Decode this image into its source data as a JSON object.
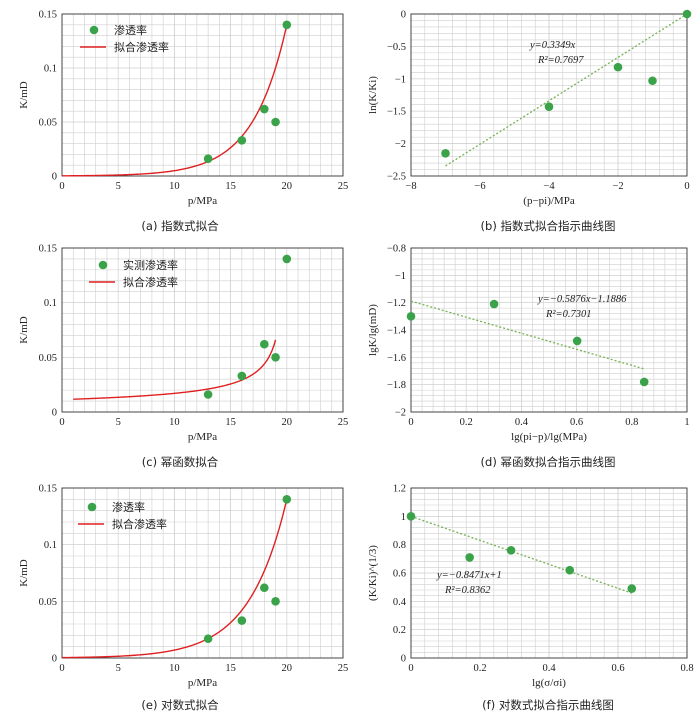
{
  "colors": {
    "point": "#3aa34a",
    "fit": "#e02020",
    "trend": "#77b255",
    "grid": "#cfcfcf",
    "axis": "#333333"
  },
  "chart_data": [
    {
      "id": "a",
      "type": "scatter",
      "caption": "(a)  指数式拟合",
      "xlabel": "p/MPa",
      "ylabel": "K/mD",
      "xlim": [
        0,
        25
      ],
      "ylim": [
        0,
        0.15
      ],
      "xticks": [
        "0",
        "5",
        "10",
        "15",
        "20",
        "25"
      ],
      "yticks": [
        "0",
        "0.05",
        "0.1",
        "0.15"
      ],
      "xtick_values": [
        0,
        5,
        10,
        15,
        20,
        25
      ],
      "ytick_values": [
        0,
        0.05,
        0.1,
        0.15
      ],
      "series": [
        {
          "name": "渗透率",
          "kind": "points",
          "x": [
            13,
            16,
            18,
            19,
            20
          ],
          "y": [
            0.016,
            0.033,
            0.062,
            0.05,
            0.14
          ]
        },
        {
          "name": "拟合渗透率",
          "kind": "curve",
          "fit": "exp",
          "x_start": 0,
          "x_end": 20,
          "k0": 0.14,
          "p0": 20,
          "b": 0.3349
        }
      ],
      "legend_position": "top-left"
    },
    {
      "id": "b",
      "type": "scatter",
      "caption": "(b)  指数式拟合指示曲线图",
      "xlabel": "(p−pi)/MPa",
      "ylabel": "ln(K/Ki)",
      "xlim": [
        -8,
        0
      ],
      "ylim": [
        -2.5,
        0
      ],
      "xticks": [
        "−8",
        "−6",
        "−4",
        "−2",
        "0"
      ],
      "yticks": [
        "−2.5",
        "−2",
        "−1.5",
        "−1",
        "−0.5",
        "0"
      ],
      "xtick_values": [
        -8,
        -6,
        -4,
        -2,
        0
      ],
      "ytick_values": [
        -2.5,
        -2,
        -1.5,
        -1,
        -0.5,
        0
      ],
      "series": [
        {
          "name": "data",
          "kind": "points",
          "x": [
            -7,
            -4,
            -2,
            -1,
            0
          ],
          "y": [
            -2.15,
            -1.43,
            -0.82,
            -1.03,
            0
          ]
        },
        {
          "name": "trend",
          "kind": "trend",
          "slope": 0.3349,
          "intercept": 0,
          "x_start": -7,
          "x_end": 0
        }
      ],
      "annotation": {
        "equation": "y=0.3349x",
        "r2": "R²=0.7697"
      }
    },
    {
      "id": "c",
      "type": "scatter",
      "caption": "(c)  幂函数拟合",
      "xlabel": "p/MPa",
      "ylabel": "K/mD",
      "xlim": [
        0,
        25
      ],
      "ylim": [
        0,
        0.15
      ],
      "xticks": [
        "0",
        "5",
        "10",
        "15",
        "20",
        "25"
      ],
      "yticks": [
        "0",
        "0.05",
        "0.1",
        "0.15"
      ],
      "xtick_values": [
        0,
        5,
        10,
        15,
        20,
        25
      ],
      "ytick_values": [
        0,
        0.05,
        0.1,
        0.15
      ],
      "series": [
        {
          "name": "实测渗透率",
          "kind": "points",
          "x": [
            13,
            16,
            18,
            19,
            20
          ],
          "y": [
            0.016,
            0.033,
            0.062,
            0.05,
            0.14
          ]
        },
        {
          "name": "拟合渗透率",
          "kind": "curve",
          "fit": "power",
          "x_start": 1,
          "x_end": 19,
          "k0": 0.14,
          "p0": 20,
          "b": -0.5876
        }
      ],
      "legend_position": "top-left"
    },
    {
      "id": "d",
      "type": "scatter",
      "caption": "(d)  幂函数拟合指示曲线图",
      "xlabel": "lg(pi−p)/lg(MPa)",
      "ylabel": "lgK/lg(mD)",
      "xlim": [
        0,
        1
      ],
      "ylim": [
        -2,
        -0.8
      ],
      "xticks": [
        "0",
        "0.2",
        "0.4",
        "0.6",
        "0.8",
        "1"
      ],
      "yticks": [
        "−2",
        "−1.8",
        "−1.6",
        "−1.4",
        "−1.2",
        "−1",
        "−0.8"
      ],
      "xtick_values": [
        0,
        0.2,
        0.4,
        0.6,
        0.8,
        1
      ],
      "ytick_values": [
        -2,
        -1.8,
        -1.6,
        -1.4,
        -1.2,
        -1,
        -0.8
      ],
      "series": [
        {
          "name": "data",
          "kind": "points",
          "x": [
            0,
            0.301,
            0.602,
            0.845
          ],
          "y": [
            -1.3,
            -1.21,
            -1.48,
            -1.78
          ]
        },
        {
          "name": "trend",
          "kind": "trend",
          "slope": -0.5876,
          "intercept": -1.1886,
          "x_start": 0,
          "x_end": 0.845
        }
      ],
      "annotation": {
        "equation": "y=−0.5876x−1.1886",
        "r2": "R²=0.7301"
      }
    },
    {
      "id": "e",
      "type": "scatter",
      "caption": "(e)  对数式拟合",
      "xlabel": "p/MPa",
      "ylabel": "K/mD",
      "xlim": [
        0,
        25
      ],
      "ylim": [
        0,
        0.15
      ],
      "xticks": [
        "0",
        "5",
        "10",
        "15",
        "20",
        "25"
      ],
      "yticks": [
        "0",
        "0.05",
        "0.1",
        "0.15"
      ],
      "xtick_values": [
        0,
        5,
        10,
        15,
        20,
        25
      ],
      "ytick_values": [
        0,
        0.05,
        0.1,
        0.15
      ],
      "series": [
        {
          "name": "渗透率",
          "kind": "points",
          "x": [
            13,
            16,
            18,
            19,
            20
          ],
          "y": [
            0.017,
            0.033,
            0.062,
            0.05,
            0.14
          ]
        },
        {
          "name": "拟合渗透率",
          "kind": "curve",
          "fit": "exp",
          "x_start": 0,
          "x_end": 20,
          "k0": 0.14,
          "p0": 20,
          "b": 0.3
        }
      ],
      "legend_position": "top-left"
    },
    {
      "id": "f",
      "type": "scatter",
      "caption": "(f)  对数式拟合指示曲线图",
      "xlabel": "lg(σ/σi)",
      "ylabel": "(K/Ki)^(1/3)",
      "xlim": [
        0,
        0.8
      ],
      "ylim": [
        0,
        1.2
      ],
      "xticks": [
        "0",
        "0.2",
        "0.4",
        "0.6",
        "0.8"
      ],
      "yticks": [
        "0",
        "0.2",
        "0.4",
        "0.6",
        "0.8",
        "1",
        "1.2"
      ],
      "xtick_values": [
        0,
        0.2,
        0.4,
        0.6,
        0.8
      ],
      "ytick_values": [
        0,
        0.2,
        0.4,
        0.6,
        0.8,
        1,
        1.2
      ],
      "series": [
        {
          "name": "data",
          "kind": "points",
          "x": [
            0,
            0.17,
            0.29,
            0.46,
            0.64
          ],
          "y": [
            1.0,
            0.71,
            0.76,
            0.62,
            0.49
          ]
        },
        {
          "name": "trend",
          "kind": "trend",
          "slope": -0.8471,
          "intercept": 1,
          "x_start": 0,
          "x_end": 0.64
        }
      ],
      "annotation": {
        "equation": "y=−0.8471x+1",
        "r2": "R²=0.8362"
      }
    }
  ]
}
